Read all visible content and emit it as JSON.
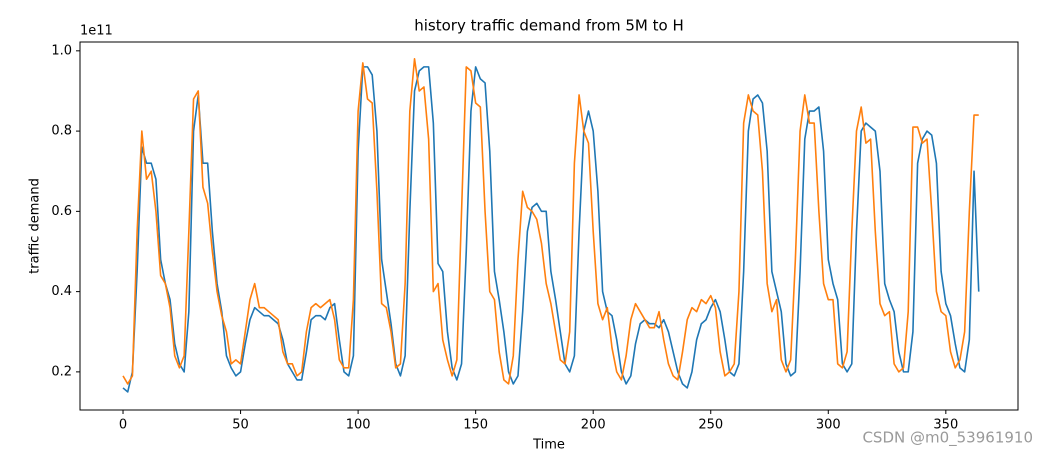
{
  "chart_data": {
    "type": "line",
    "title": "history traffic demand from 5M to H",
    "x_label": "Time",
    "y_label": "traffic demand",
    "y_offset_label": "1e11",
    "watermark": "CSDN @m0_53961910",
    "x": [
      0,
      2,
      4,
      6,
      8,
      10,
      12,
      14,
      16,
      18,
      20,
      22,
      24,
      26,
      28,
      30,
      32,
      34,
      36,
      38,
      40,
      42,
      44,
      46,
      48,
      50,
      52,
      54,
      56,
      58,
      60,
      62,
      64,
      66,
      68,
      70,
      72,
      74,
      76,
      78,
      80,
      82,
      84,
      86,
      88,
      90,
      92,
      94,
      96,
      98,
      100,
      102,
      104,
      106,
      108,
      110,
      112,
      114,
      116,
      118,
      120,
      122,
      124,
      126,
      128,
      130,
      132,
      134,
      136,
      138,
      140,
      142,
      144,
      146,
      148,
      150,
      152,
      154,
      156,
      158,
      160,
      162,
      164,
      166,
      168,
      170,
      172,
      174,
      176,
      178,
      180,
      182,
      184,
      186,
      188,
      190,
      192,
      194,
      196,
      198,
      200,
      202,
      204,
      206,
      208,
      210,
      212,
      214,
      216,
      218,
      220,
      222,
      224,
      226,
      228,
      230,
      232,
      234,
      236,
      238,
      240,
      242,
      244,
      246,
      248,
      250,
      252,
      254,
      256,
      258,
      260,
      262,
      264,
      266,
      268,
      270,
      272,
      274,
      276,
      278,
      280,
      282,
      284,
      286,
      288,
      290,
      292,
      294,
      296,
      298,
      300,
      302,
      304,
      306,
      308,
      310,
      312,
      314,
      316,
      318,
      320,
      322,
      324,
      326,
      328,
      330,
      332,
      334,
      336,
      338,
      340,
      342,
      344,
      346,
      348,
      350,
      352,
      354,
      356,
      358,
      360,
      362,
      364
    ],
    "series": [
      {
        "color": "#1f77b4",
        "values": [
          0.16,
          0.15,
          0.2,
          0.45,
          0.76,
          0.72,
          0.72,
          0.68,
          0.48,
          0.42,
          0.38,
          0.27,
          0.22,
          0.2,
          0.35,
          0.8,
          0.89,
          0.72,
          0.72,
          0.55,
          0.42,
          0.35,
          0.24,
          0.21,
          0.19,
          0.2,
          0.27,
          0.33,
          0.36,
          0.35,
          0.34,
          0.34,
          0.33,
          0.32,
          0.28,
          0.22,
          0.2,
          0.18,
          0.18,
          0.25,
          0.33,
          0.34,
          0.34,
          0.33,
          0.36,
          0.37,
          0.28,
          0.2,
          0.19,
          0.24,
          0.75,
          0.96,
          0.96,
          0.94,
          0.8,
          0.48,
          0.4,
          0.32,
          0.22,
          0.19,
          0.24,
          0.6,
          0.9,
          0.95,
          0.96,
          0.96,
          0.82,
          0.47,
          0.45,
          0.3,
          0.21,
          0.18,
          0.22,
          0.5,
          0.85,
          0.96,
          0.93,
          0.92,
          0.75,
          0.45,
          0.38,
          0.3,
          0.2,
          0.17,
          0.19,
          0.35,
          0.55,
          0.61,
          0.62,
          0.6,
          0.6,
          0.45,
          0.38,
          0.3,
          0.22,
          0.2,
          0.24,
          0.55,
          0.8,
          0.85,
          0.8,
          0.65,
          0.4,
          0.35,
          0.34,
          0.28,
          0.2,
          0.17,
          0.19,
          0.27,
          0.32,
          0.33,
          0.32,
          0.32,
          0.31,
          0.33,
          0.3,
          0.25,
          0.2,
          0.17,
          0.16,
          0.2,
          0.28,
          0.32,
          0.33,
          0.36,
          0.38,
          0.35,
          0.28,
          0.2,
          0.19,
          0.22,
          0.45,
          0.8,
          0.88,
          0.89,
          0.87,
          0.75,
          0.45,
          0.4,
          0.35,
          0.22,
          0.19,
          0.2,
          0.45,
          0.78,
          0.85,
          0.85,
          0.86,
          0.75,
          0.48,
          0.42,
          0.38,
          0.22,
          0.2,
          0.22,
          0.55,
          0.8,
          0.82,
          0.81,
          0.8,
          0.7,
          0.42,
          0.38,
          0.35,
          0.25,
          0.2,
          0.2,
          0.3,
          0.72,
          0.78,
          0.8,
          0.79,
          0.72,
          0.45,
          0.37,
          0.34,
          0.27,
          0.21,
          0.2,
          0.28,
          0.7,
          0.4
        ]
      },
      {
        "color": "#ff7f0e",
        "values": [
          0.19,
          0.17,
          0.19,
          0.55,
          0.8,
          0.68,
          0.7,
          0.6,
          0.44,
          0.42,
          0.36,
          0.24,
          0.21,
          0.24,
          0.55,
          0.88,
          0.9,
          0.66,
          0.62,
          0.5,
          0.4,
          0.34,
          0.3,
          0.22,
          0.23,
          0.22,
          0.3,
          0.38,
          0.42,
          0.36,
          0.36,
          0.35,
          0.34,
          0.33,
          0.25,
          0.22,
          0.22,
          0.19,
          0.2,
          0.3,
          0.36,
          0.37,
          0.36,
          0.37,
          0.38,
          0.33,
          0.23,
          0.21,
          0.21,
          0.38,
          0.85,
          0.97,
          0.88,
          0.87,
          0.65,
          0.37,
          0.36,
          0.3,
          0.21,
          0.22,
          0.42,
          0.85,
          0.98,
          0.9,
          0.91,
          0.78,
          0.4,
          0.42,
          0.28,
          0.23,
          0.19,
          0.23,
          0.6,
          0.96,
          0.95,
          0.87,
          0.86,
          0.6,
          0.4,
          0.38,
          0.25,
          0.18,
          0.17,
          0.24,
          0.48,
          0.65,
          0.61,
          0.6,
          0.58,
          0.52,
          0.42,
          0.37,
          0.3,
          0.23,
          0.22,
          0.3,
          0.72,
          0.89,
          0.8,
          0.77,
          0.55,
          0.37,
          0.33,
          0.36,
          0.26,
          0.2,
          0.18,
          0.24,
          0.33,
          0.37,
          0.35,
          0.33,
          0.31,
          0.31,
          0.35,
          0.28,
          0.22,
          0.19,
          0.18,
          0.25,
          0.33,
          0.36,
          0.35,
          0.38,
          0.37,
          0.39,
          0.36,
          0.25,
          0.19,
          0.2,
          0.22,
          0.4,
          0.82,
          0.89,
          0.85,
          0.84,
          0.7,
          0.42,
          0.35,
          0.38,
          0.23,
          0.2,
          0.23,
          0.48,
          0.8,
          0.89,
          0.82,
          0.82,
          0.6,
          0.42,
          0.38,
          0.38,
          0.22,
          0.21,
          0.25,
          0.55,
          0.8,
          0.86,
          0.77,
          0.78,
          0.55,
          0.37,
          0.34,
          0.35,
          0.22,
          0.2,
          0.21,
          0.35,
          0.81,
          0.81,
          0.77,
          0.78,
          0.6,
          0.4,
          0.35,
          0.34,
          0.25,
          0.21,
          0.23,
          0.3,
          0.6,
          0.84,
          0.84
        ]
      }
    ],
    "xlim": [
      -18.3,
      380.7
    ],
    "xticks": [
      0,
      50,
      100,
      150,
      200,
      250,
      300,
      350
    ],
    "ylim": [
      0.105,
      1.022
    ],
    "yticks": [
      0.2,
      0.4,
      0.6,
      0.8,
      {
        "value": 1.0,
        "label": "1.0"
      }
    ]
  }
}
